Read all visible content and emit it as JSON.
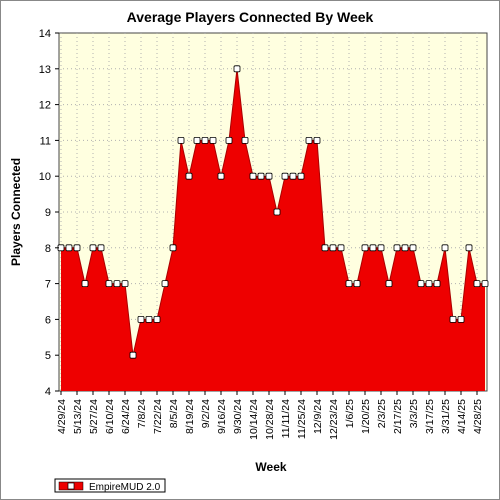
{
  "chart_data": {
    "type": "area",
    "title": "Average Players Connected By Week",
    "xlabel": "Week",
    "ylabel": "Players Connected",
    "ylim": [
      4,
      14
    ],
    "yticks": [
      4,
      5,
      6,
      7,
      8,
      9,
      10,
      11,
      12,
      13,
      14
    ],
    "grid": true,
    "legend_position": "bottom-left",
    "x_tick_labels": [
      "4/29/24",
      "5/13/24",
      "5/27/24",
      "6/10/24",
      "6/24/24",
      "7/8/24",
      "7/22/24",
      "8/5/24",
      "8/19/24",
      "9/2/24",
      "9/16/24",
      "9/30/24",
      "10/14/24",
      "10/28/24",
      "11/11/24",
      "11/25/24",
      "12/9/24",
      "12/23/24",
      "1/6/25",
      "1/20/25",
      "2/3/25",
      "2/17/25",
      "3/3/25",
      "3/17/25",
      "3/31/25",
      "4/14/25",
      "4/28/25"
    ],
    "x": [
      "4/29/24",
      "5/6/24",
      "5/13/24",
      "5/20/24",
      "5/27/24",
      "6/3/24",
      "6/10/24",
      "6/17/24",
      "6/24/24",
      "7/1/24",
      "7/8/24",
      "7/15/24",
      "7/22/24",
      "7/29/24",
      "8/5/24",
      "8/12/24",
      "8/19/24",
      "8/26/24",
      "9/2/24",
      "9/9/24",
      "9/16/24",
      "9/23/24",
      "9/30/24",
      "10/7/24",
      "10/14/24",
      "10/21/24",
      "10/28/24",
      "11/4/24",
      "11/11/24",
      "11/18/24",
      "11/25/24",
      "12/2/24",
      "12/9/24",
      "12/16/24",
      "12/23/24",
      "12/30/24",
      "1/6/25",
      "1/13/25",
      "1/20/25",
      "1/27/25",
      "2/3/25",
      "2/10/25",
      "2/17/25",
      "2/24/25",
      "3/3/25",
      "3/10/25",
      "3/17/25",
      "3/24/25",
      "3/31/25",
      "4/7/25",
      "4/14/25",
      "4/21/25",
      "4/28/25",
      "5/5/25"
    ],
    "series": [
      {
        "name": "EmpireMUD 2.0",
        "color": "#ee0000",
        "values": [
          8,
          8,
          8,
          7,
          8,
          8,
          7,
          7,
          7,
          5,
          6,
          6,
          6,
          7,
          8,
          11,
          10,
          11,
          11,
          11,
          10,
          11,
          13,
          11,
          10,
          10,
          10,
          9,
          10,
          10,
          10,
          11,
          11,
          8,
          8,
          8,
          7,
          7,
          8,
          8,
          8,
          7,
          8,
          8,
          8,
          7,
          7,
          7,
          8,
          6,
          6,
          8,
          7,
          7
        ]
      }
    ],
    "colors": {
      "plot_bg": "#ffffe0",
      "area": "#ee0000",
      "marker_fill": "#ffffff",
      "outline": "#000000"
    }
  }
}
